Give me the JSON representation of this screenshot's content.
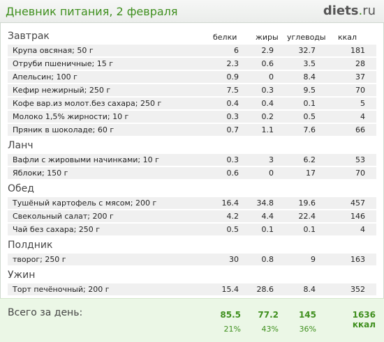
{
  "header": {
    "title": "Дневник питания, 2 февраля",
    "logo_main": "diets",
    "logo_dot": ".",
    "logo_tld": "ru"
  },
  "columns": {
    "protein": "белки",
    "fat": "жиры",
    "carbs": "углеводы",
    "kcal": "ккал"
  },
  "meals": [
    {
      "name": "Завтрак",
      "items": [
        {
          "name": "Крупа овсяная; 50 г",
          "p": "6",
          "f": "2.9",
          "c": "32.7",
          "k": "181"
        },
        {
          "name": "Отруби пшеничные; 15 г",
          "p": "2.3",
          "f": "0.6",
          "c": "3.5",
          "k": "28"
        },
        {
          "name": "Апельсин; 100 г",
          "p": "0.9",
          "f": "0",
          "c": "8.4",
          "k": "37"
        },
        {
          "name": "Кефир нежирный; 250 г",
          "p": "7.5",
          "f": "0.3",
          "c": "9.5",
          "k": "70"
        },
        {
          "name": "Кофе вар.из молот.без сахара; 250 г",
          "p": "0.4",
          "f": "0.4",
          "c": "0.1",
          "k": "5"
        },
        {
          "name": "Молоко 1,5% жирности; 10 г",
          "p": "0.3",
          "f": "0.2",
          "c": "0.5",
          "k": "4"
        },
        {
          "name": "Пряник в шоколаде; 60 г",
          "p": "0.7",
          "f": "1.1",
          "c": "7.6",
          "k": "66"
        }
      ]
    },
    {
      "name": "Ланч",
      "items": [
        {
          "name": "Вафли с жировыми начинками; 10 г",
          "p": "0.3",
          "f": "3",
          "c": "6.2",
          "k": "53"
        },
        {
          "name": "Яблоки; 150 г",
          "p": "0.6",
          "f": "0",
          "c": "17",
          "k": "70"
        }
      ]
    },
    {
      "name": "Обед",
      "items": [
        {
          "name": "Тушёный картофель с мясом; 200 г",
          "p": "16.4",
          "f": "34.8",
          "c": "19.6",
          "k": "457"
        },
        {
          "name": "Свекольный салат; 200 г",
          "p": "4.2",
          "f": "4.4",
          "c": "22.4",
          "k": "146"
        },
        {
          "name": "Чай без сахара; 250 г",
          "p": "0.5",
          "f": "0.1",
          "c": "0.1",
          "k": "4"
        }
      ]
    },
    {
      "name": "Полдник",
      "items": [
        {
          "name": "творог; 250 г",
          "p": "30",
          "f": "0.8",
          "c": "9",
          "k": "163"
        }
      ]
    },
    {
      "name": "Ужин",
      "items": [
        {
          "name": "Торт печёночный; 200 г",
          "p": "15.4",
          "f": "28.6",
          "c": "8.4",
          "k": "352"
        }
      ]
    }
  ],
  "totals": {
    "label": "Всего за день:",
    "protein": "85.5",
    "fat": "77.2",
    "carbs": "145",
    "kcal": "1636 ккал",
    "protein_pct": "21%",
    "fat_pct": "43%",
    "carbs_pct": "36%"
  },
  "colors": {
    "accent": "#3f8f1e",
    "row_bg": "#f0f0f0",
    "footer_bg": "#ebf7e6"
  }
}
